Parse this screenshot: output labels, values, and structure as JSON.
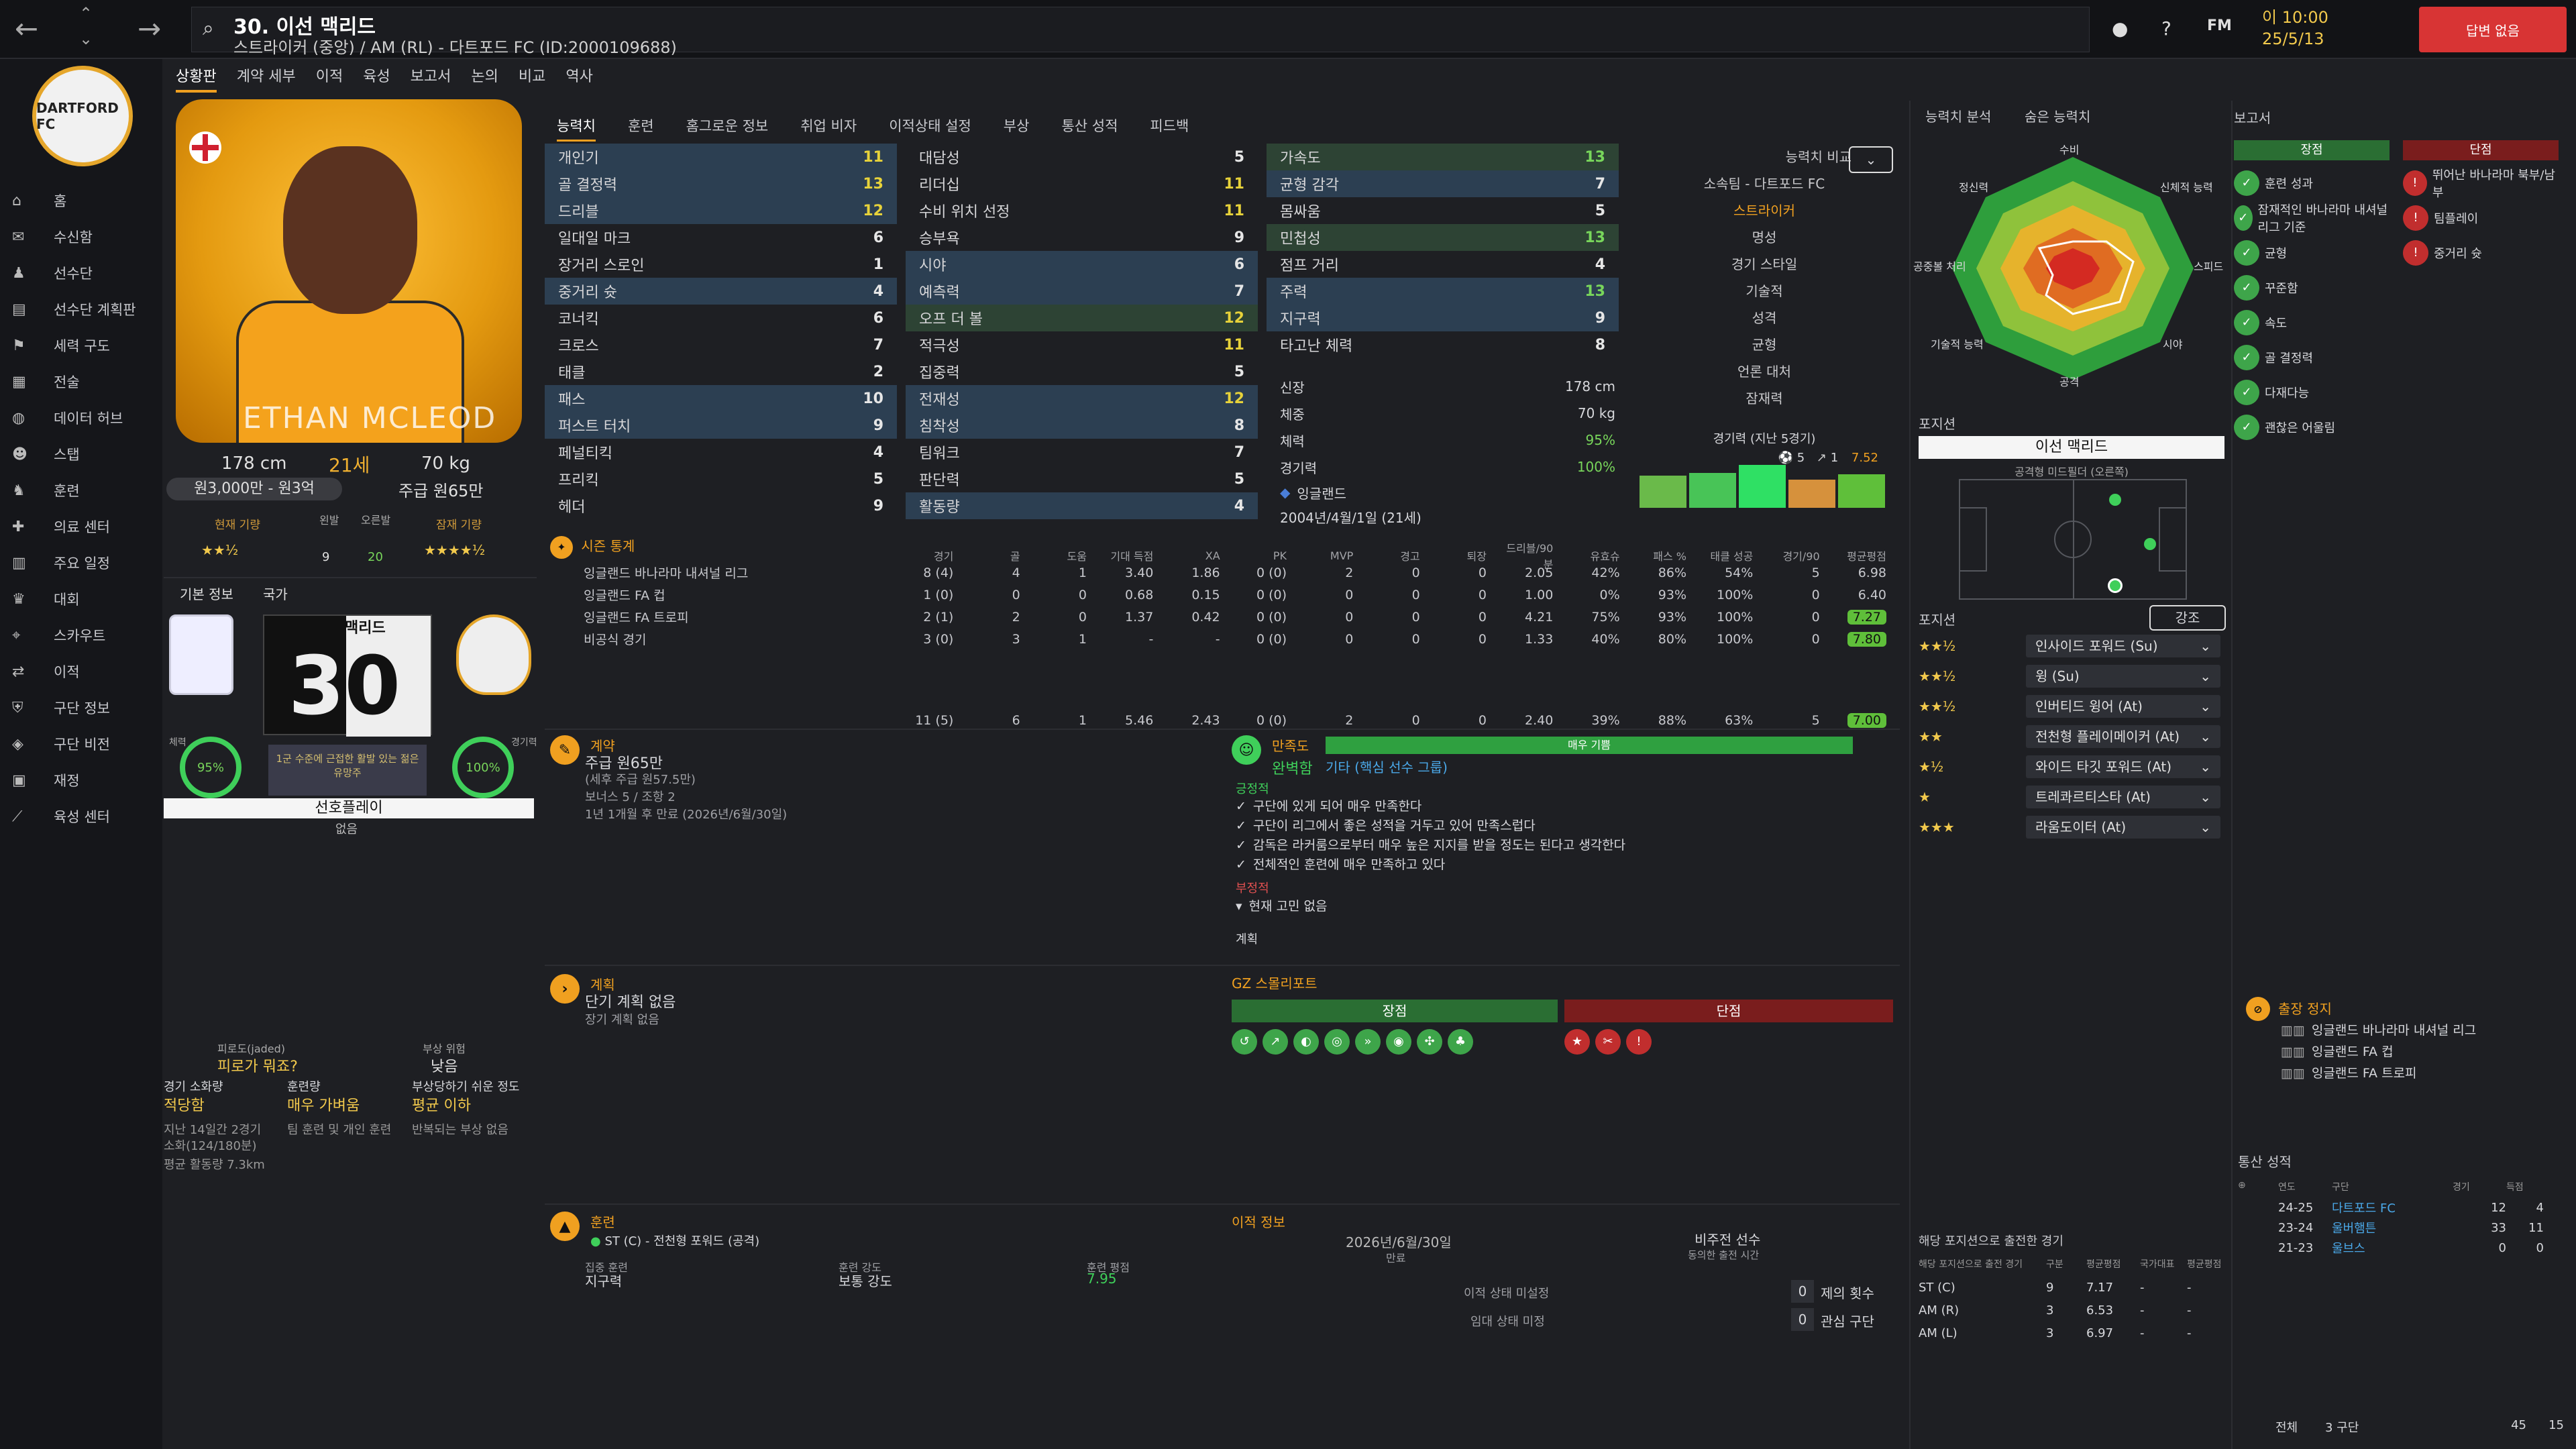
{
  "header": {
    "title": "30. 이선 맥리드",
    "subtitle": "스트라이커 (중앙) / AM (RL) - 다트포드 FC (ID:2000109688)",
    "time": "이 10:00",
    "date": "25/5/13",
    "continue": "답변 없음",
    "fm": "FM"
  },
  "sidebar": {
    "club_logo": "DARTFORD FC",
    "items": [
      {
        "label": "홈",
        "icon": "home-icon"
      },
      {
        "label": "수신함",
        "icon": "inbox-icon"
      },
      {
        "label": "선수단",
        "icon": "squad-icon"
      },
      {
        "label": "선수단 계획판",
        "icon": "planner-icon"
      },
      {
        "label": "세력 구도",
        "icon": "dynamics-icon"
      },
      {
        "label": "전술",
        "icon": "tactics-icon"
      },
      {
        "label": "데이터 허브",
        "icon": "data-icon"
      },
      {
        "label": "스탭",
        "icon": "staff-icon"
      },
      {
        "label": "훈련",
        "icon": "training-icon"
      },
      {
        "label": "의료 센터",
        "icon": "medical-icon"
      },
      {
        "label": "주요 일정",
        "icon": "calendar-icon"
      },
      {
        "label": "대회",
        "icon": "trophy-icon"
      },
      {
        "label": "스카우트",
        "icon": "scout-icon"
      },
      {
        "label": "이적",
        "icon": "transfer-icon"
      },
      {
        "label": "구단 정보",
        "icon": "club-icon"
      },
      {
        "label": "구단 비전",
        "icon": "vision-icon"
      },
      {
        "label": "재정",
        "icon": "finance-icon"
      },
      {
        "label": "육성 센터",
        "icon": "dev-icon"
      }
    ]
  },
  "top_tabs": [
    "상황판",
    "계약 세부",
    "이적",
    "육성",
    "보고서",
    "논의",
    "비교",
    "역사"
  ],
  "player": {
    "watermark": "ETHAN MCLEOD",
    "height": "178 cm",
    "age": "21세",
    "weight": "70 kg",
    "value": "원3,000만 - 원3억",
    "wage": "주급 원65만",
    "current_ability_label": "현재 기량",
    "left_foot_label": "왼발",
    "right_foot_label": "오른발",
    "left_foot": "9",
    "right_foot": "20",
    "potential_label": "잠재 기량",
    "basic_info_tab": "기본 정보",
    "nation_tab": "국가",
    "shirt_number": "30",
    "shirt_name": "맥리드",
    "fitness_label": "체력",
    "fitness": "95%",
    "match_sharp_label": "경기력",
    "match_sharp": "100%",
    "note": "1군 수준에 근접한 활발 있는 젊은 유망주",
    "selection": "선호플레이",
    "selection_sub": "없음"
  },
  "condition": {
    "fatigue_label": "피로도(jaded)",
    "fatigue_value": "피로가 뭐죠?",
    "injury_risk_label": "부상 위험",
    "injury_risk_value": "낮음",
    "match_load_label": "경기 소화량",
    "match_load_value": "적당함",
    "training_load_label": "훈련량",
    "training_load_value": "매우 가벼움",
    "injury_prone_label": "부상당하기 쉬운 정도",
    "injury_prone_value": "평균 이하",
    "minutes_text": "지난 14일간 2경기",
    "minutes_text2": "소화(124/180분)",
    "team_training": "팀 훈련 및 개인 훈련",
    "injury_note": "반복되는 부상 없음",
    "distance": "평균 활동량 7.3km"
  },
  "attr_tabs": [
    "능력치",
    "훈련",
    "홈그로운 정보",
    "취업 비자",
    "이적상태 설정",
    "부상",
    "통산 성적",
    "피드백"
  ],
  "attributes": {
    "col1": [
      {
        "name": "개인기",
        "value": "11",
        "hl": "hl",
        "color": "yel"
      },
      {
        "name": "골 결정력",
        "value": "13",
        "hl": "hl",
        "color": "yel"
      },
      {
        "name": "드리블",
        "value": "12",
        "hl": "hl",
        "color": "yel"
      },
      {
        "name": "일대일 마크",
        "value": "6",
        "hl": "",
        "color": "wht"
      },
      {
        "name": "장거리 스로인",
        "value": "1",
        "hl": "",
        "color": "wht"
      },
      {
        "name": "중거리 슛",
        "value": "4",
        "hl": "hl",
        "color": "wht"
      },
      {
        "name": "코너킥",
        "value": "6",
        "hl": "",
        "color": "wht"
      },
      {
        "name": "크로스",
        "value": "7",
        "hl": "",
        "color": "wht"
      },
      {
        "name": "태클",
        "value": "2",
        "hl": "",
        "color": "wht"
      },
      {
        "name": "패스",
        "value": "10",
        "hl": "hl",
        "color": "wht"
      },
      {
        "name": "퍼스트 터치",
        "value": "9",
        "hl": "hl",
        "color": "wht"
      },
      {
        "name": "페널티킥",
        "value": "4",
        "hl": "",
        "color": "wht"
      },
      {
        "name": "프리킥",
        "value": "5",
        "hl": "",
        "color": "wht"
      },
      {
        "name": "헤더",
        "value": "9",
        "hl": "",
        "color": "wht"
      }
    ],
    "col2": [
      {
        "name": "대담성",
        "value": "5",
        "hl": "",
        "color": "wht"
      },
      {
        "name": "리더십",
        "value": "11",
        "hl": "",
        "color": "yel"
      },
      {
        "name": "수비 위치 선정",
        "value": "11",
        "hl": "",
        "color": "yel"
      },
      {
        "name": "승부욕",
        "value": "9",
        "hl": "",
        "color": "wht"
      },
      {
        "name": "시야",
        "value": "6",
        "hl": "hl",
        "color": "wht"
      },
      {
        "name": "예측력",
        "value": "7",
        "hl": "hl",
        "color": "wht"
      },
      {
        "name": "오프 더 볼",
        "value": "12",
        "hl": "gr",
        "color": "yel"
      },
      {
        "name": "적극성",
        "value": "11",
        "hl": "",
        "color": "yel"
      },
      {
        "name": "집중력",
        "value": "5",
        "hl": "",
        "color": "wht"
      },
      {
        "name": "전재성",
        "value": "12",
        "hl": "hl",
        "color": "yel"
      },
      {
        "name": "침착성",
        "value": "8",
        "hl": "hl",
        "color": "wht"
      },
      {
        "name": "팀워크",
        "value": "7",
        "hl": "",
        "color": "wht"
      },
      {
        "name": "판단력",
        "value": "5",
        "hl": "",
        "color": "wht"
      },
      {
        "name": "활동량",
        "value": "4",
        "hl": "hl",
        "color": "wht"
      }
    ],
    "col3": [
      {
        "name": "가속도",
        "value": "13",
        "hl": "gr",
        "color": "grn"
      },
      {
        "name": "균형 감각",
        "value": "7",
        "hl": "hl",
        "color": "wht"
      },
      {
        "name": "몸싸움",
        "value": "5",
        "hl": "",
        "color": "wht"
      },
      {
        "name": "민첩성",
        "value": "13",
        "hl": "gr",
        "color": "grn"
      },
      {
        "name": "점프 거리",
        "value": "4",
        "hl": "",
        "color": "wht"
      },
      {
        "name": "주력",
        "value": "13",
        "hl": "hl",
        "color": "grn"
      },
      {
        "name": "지구력",
        "value": "9",
        "hl": "hl",
        "color": "wht"
      },
      {
        "name": "타고난 체력",
        "value": "8",
        "hl": "",
        "color": "wht"
      }
    ]
  },
  "compare": {
    "label": "능력치 비교",
    "club": "소속팀 - 다트포드 FC",
    "role": "스트라이커",
    "rows": [
      "명성",
      "경기 스타일",
      "기술적",
      "성격",
      "균형",
      "언론 대처",
      "잠재력"
    ]
  },
  "bio": {
    "height_label": "신장",
    "height": "178 cm",
    "weight_label": "체중",
    "weight": "70 kg",
    "fitness_label": "체력",
    "fitness": "95%",
    "sharp_label": "경기력",
    "sharp": "100%",
    "nation": "잉글랜드",
    "dob": "2004년/4월/1일 (21세)",
    "recent_label": "경기력 (지난 5경기)",
    "recent_goals": "5",
    "recent_assists": "1",
    "recent_avg": "7.52"
  },
  "radar": {
    "tab1": "능력치 분석",
    "tab2": "숨은 능력치",
    "axes": [
      "수비",
      "신체적 능력",
      "스피드",
      "시야",
      "공격",
      "기술적 능력",
      "공중볼 처리",
      "정신력"
    ]
  },
  "season_stats": {
    "title": "시즌 통계",
    "headers": [
      "",
      "경기",
      "골",
      "도움",
      "기대 득점",
      "XA",
      "PK",
      "MVP",
      "경고",
      "퇴장",
      "드리블/90분",
      "유효슈",
      "패스 %",
      "태클 성공",
      "경기/90",
      "평균평점"
    ],
    "rows": [
      [
        "잉글랜드 바나라마 내셔널 리그",
        "8 (4)",
        "4",
        "1",
        "3.40",
        "1.86",
        "0 (0)",
        "2",
        "0",
        "0",
        "2.05",
        "42%",
        "86%",
        "54%",
        "5",
        "6.98"
      ],
      [
        "잉글랜드 FA 컵",
        "1 (0)",
        "0",
        "0",
        "0.68",
        "0.15",
        "0 (0)",
        "0",
        "0",
        "0",
        "1.00",
        "0%",
        "93%",
        "100%",
        "0",
        "6.40"
      ],
      [
        "잉글랜드 FA 트로피",
        "2 (1)",
        "2",
        "0",
        "1.37",
        "0.42",
        "0 (0)",
        "0",
        "0",
        "0",
        "4.21",
        "75%",
        "93%",
        "100%",
        "0",
        "7.27"
      ],
      [
        "비공식 경기",
        "3 (0)",
        "3",
        "1",
        "-",
        "-",
        "0 (0)",
        "0",
        "0",
        "0",
        "1.33",
        "40%",
        "80%",
        "100%",
        "0",
        "7.80"
      ]
    ],
    "total": [
      "",
      "11 (5)",
      "6",
      "1",
      "5.46",
      "2.43",
      "0 (0)",
      "2",
      "0",
      "0",
      "2.40",
      "39%",
      "88%",
      "63%",
      "5",
      "7.00"
    ]
  },
  "contract": {
    "title": "계약",
    "wage": "주급 원65만",
    "wage_detail": "(세후 주급 원57.5만)",
    "bonus": "보너스 5 / 조항 2",
    "expiry": "1년 1개월 후 만료 (2026년/6월/30일)"
  },
  "happiness": {
    "title": "만족도",
    "bar_label": "매우 기쁨",
    "status": "완벽함",
    "role": "기타 (핵심 선수 그룹)",
    "positive_label": "긍정적",
    "positives": [
      "구단에 있게 되어 매우 만족한다",
      "구단이 리그에서 좋은 성적을 거두고 있어 만족스럽다",
      "감독은 라커룸으로부터 매우 높은 지지를 받을 정도는 된다고 생각한다",
      "전체적인 훈련에 매우 만족하고 있다"
    ],
    "negative_label": "부정적",
    "negatives": [
      "현재 고민 없음"
    ],
    "plans_label": "계획"
  },
  "plans": {
    "title": "계획",
    "short": "단기 계획 없음",
    "long": "장기 계획 없음"
  },
  "scout": {
    "title": "GZ 스몰리포트",
    "strengths": "장점",
    "weaknesses": "단점"
  },
  "training": {
    "title": "훈련",
    "role": "ST (C) - 전천형 포워드 (공격)",
    "focus_label": "집중 훈련",
    "focus": "지구력",
    "intensity_label": "훈련 강도",
    "intensity": "보통 강도",
    "rating_label": "훈련 평점",
    "rating": "7.95"
  },
  "transfer": {
    "title": "이적 정보",
    "contract_date": "2026년/6월/30일",
    "contract_label": "만료",
    "non_playing": "비주전 선수",
    "non_playing_sub": "동의한 출전 시간",
    "status1": "이적 상태 미설정",
    "status2": "임대 상태 미정",
    "offers_num": "0",
    "offers_label": "제의 횟수",
    "interest_num": "0",
    "interest_label": "관심 구단"
  },
  "positions": {
    "title": "포지션",
    "player_name": "이선 맥리드",
    "role_sub": "공격형 미드필더 (오른쪽)",
    "list_title": "포지션",
    "highlight": "강조",
    "roles": [
      {
        "stars": "★★½",
        "name": "인사이드 포워드 (Su)"
      },
      {
        "stars": "★★½",
        "name": "윙 (Su)"
      },
      {
        "stars": "★★½",
        "name": "인버티드 윙어 (At)"
      },
      {
        "stars": "★★",
        "name": "전천형 플레이메이커 (At)"
      },
      {
        "stars": "★½",
        "name": "와이드 타깃 포워드 (At)"
      },
      {
        "stars": "★",
        "name": "트레콰르티스타 (At)"
      },
      {
        "stars": "★★★",
        "name": "라움도이터 (At)"
      }
    ]
  },
  "pos_apps": {
    "title": "해당 포지션으로 출전한 경기",
    "headers": [
      "해당 포지션으로 출전 경기",
      "구분",
      "평균평점",
      "국가대표",
      "평균평점"
    ],
    "rows": [
      [
        "ST (C)",
        "9",
        "7.17",
        "-",
        "-"
      ],
      [
        "AM (R)",
        "3",
        "6.53",
        "-",
        "-"
      ],
      [
        "AM (L)",
        "3",
        "6.97",
        "-",
        "-"
      ]
    ]
  },
  "report": {
    "title": "보고서",
    "strengths_label": "장점",
    "weaknesses_label": "단점",
    "strengths": [
      "훈련 성과",
      "잠재적인 바나라마 내셔널 리그 기준",
      "균형",
      "꾸준함",
      "속도",
      "골 결정력",
      "다재다능",
      "괜찮은 어울림"
    ],
    "weaknesses": [
      "뛰어난 바나라마 북부/남부",
      "팀플레이",
      "중거리 슛"
    ]
  },
  "suspension": {
    "title": "출장 정지",
    "items": [
      "잉글랜드 바나라마 내셔널 리그",
      "잉글랜드 FA 컵",
      "잉글랜드 FA 트로피"
    ]
  },
  "career": {
    "title": "통산 성적",
    "headers": [
      "연도",
      "구단",
      "경기",
      "득점"
    ],
    "rows": [
      [
        "24-25",
        "다트포드 FC",
        "12",
        "4"
      ],
      [
        "23-24",
        "울버햄튼",
        "33",
        "11"
      ],
      [
        "21-23",
        "울브스",
        "0",
        "0"
      ]
    ],
    "total_label": "전체",
    "total_clubs": "3 구단",
    "total_apps": "45",
    "total_goals": "15"
  }
}
